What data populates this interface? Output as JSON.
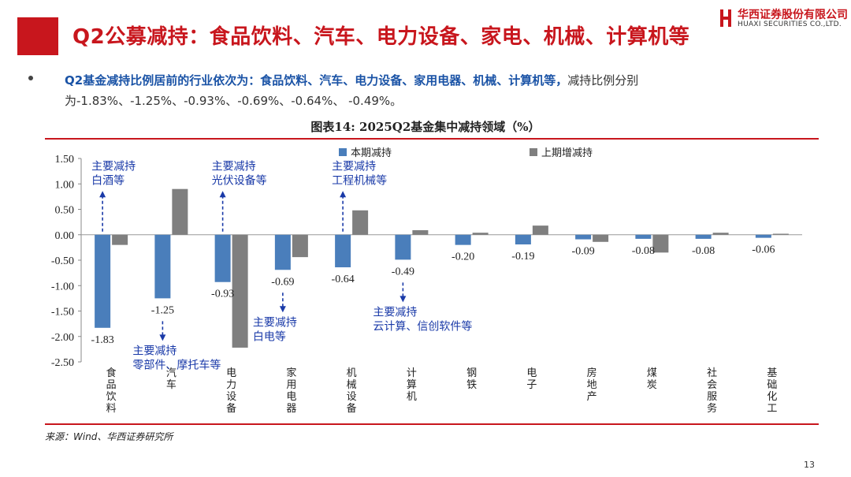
{
  "header": {
    "title": "Q2公募减持：食品饮料、汽车、电力设备、家电、机械、计算机等",
    "logo_cn": "华西证券股份有限公司",
    "logo_en": "HUAXI SECURITIES CO.,LTD."
  },
  "bullet": {
    "lead": "Q2基金减持比例居前的行业依次为：",
    "highlight": "食品饮料、汽车、电力设备、家用电器、机械、计算机等，",
    "rest": "减持比例分别为-1.83%、-1.25%、-0.93%、-0.69%、-0.64%、 -0.49%。"
  },
  "chart_data": {
    "type": "bar",
    "title": "图表14:  2025Q2基金集中减持领域（%）",
    "categories": [
      "食品饮料",
      "汽车",
      "电力设备",
      "家用电器",
      "机械设备",
      "计算机",
      "钢铁",
      "电子",
      "房地产",
      "煤炭",
      "社会服务",
      "基础化工"
    ],
    "series": [
      {
        "name": "本期减持",
        "color": "#4a7ebb",
        "values": [
          -1.83,
          -1.25,
          -0.93,
          -0.69,
          -0.64,
          -0.49,
          -0.2,
          -0.19,
          -0.09,
          -0.08,
          -0.08,
          -0.06
        ]
      },
      {
        "name": "上期增减持",
        "color": "#7f7f7f",
        "values": [
          -0.2,
          0.9,
          -2.22,
          -0.44,
          0.48,
          0.09,
          0.04,
          0.18,
          -0.14,
          -0.35,
          0.04,
          0.02
        ]
      }
    ],
    "data_labels": [
      "-1.83",
      "-1.25",
      "-0.93",
      "-0.69",
      "-0.64",
      "-0.49",
      "-0.20",
      "-0.19",
      "-0.09",
      "-0.08",
      "-0.08",
      "-0.06"
    ],
    "ylim": [
      -2.5,
      1.5
    ],
    "yticks": [
      "1.50",
      "1.00",
      "0.50",
      "0.00",
      "-0.50",
      "-1.00",
      "-1.50",
      "-2.00",
      "-2.50"
    ],
    "legend_position": "top",
    "annotations": [
      {
        "category_index": 0,
        "direction": "up",
        "lines": [
          "主要减持",
          "白酒等"
        ]
      },
      {
        "category_index": 1,
        "direction": "down",
        "lines": [
          "主要减持",
          "零部件、摩托车等"
        ]
      },
      {
        "category_index": 2,
        "direction": "up",
        "lines": [
          "主要减持",
          "光伏设备等"
        ]
      },
      {
        "category_index": 3,
        "direction": "down",
        "lines": [
          "主要减持",
          "白电等"
        ]
      },
      {
        "category_index": 4,
        "direction": "up",
        "lines": [
          "主要减持",
          "工程机械等"
        ]
      },
      {
        "category_index": 5,
        "direction": "down",
        "lines": [
          "主要减持",
          "云计算、信创软件等"
        ]
      }
    ]
  },
  "footer": {
    "source": "来源：Wind、华西证券研究所",
    "page": "13"
  }
}
